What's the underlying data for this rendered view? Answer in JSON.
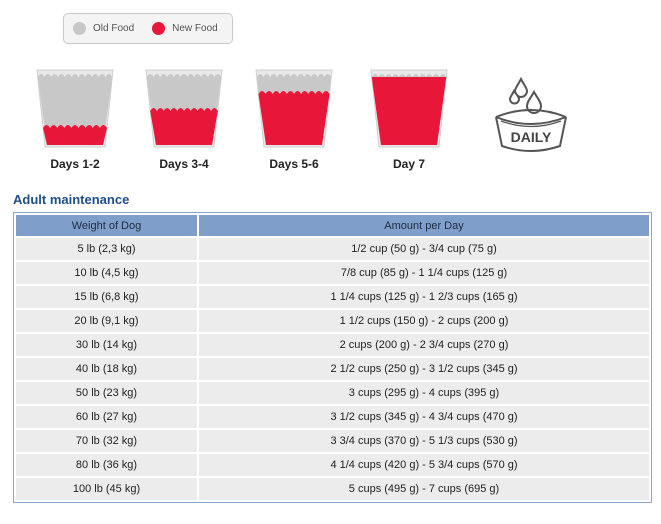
{
  "legend": {
    "old_label": "Old Food",
    "new_label": "New Food",
    "old_color": "#c8c8c8",
    "new_color": "#e8173a"
  },
  "cups": [
    {
      "label": "Days 1-2",
      "new_fraction": 0.25
    },
    {
      "label": "Days 3-4",
      "new_fraction": 0.5
    },
    {
      "label": "Days 5-6",
      "new_fraction": 0.75
    },
    {
      "label": "Day 7",
      "new_fraction": 1.0
    }
  ],
  "daily_icon": {
    "icon": "daily-bowl-icon",
    "text": "DAILY"
  },
  "section_title": "Adult maintenance",
  "table": {
    "headers": [
      "Weight of Dog",
      "Amount per Day"
    ],
    "rows": [
      [
        "5 lb (2,3 kg)",
        "1/2 cup (50 g) - 3/4 cup (75 g)"
      ],
      [
        "10 lb (4,5 kg)",
        "7/8 cup (85 g) - 1 1/4 cups (125 g)"
      ],
      [
        "15 lb (6,8 kg)",
        "1 1/4 cups (125 g) - 1 2/3 cups (165 g)"
      ],
      [
        "20 lb (9,1 kg)",
        "1 1/2 cups (150 g) - 2 cups (200 g)"
      ],
      [
        "30 lb (14 kg)",
        "2 cups (200 g) - 2 3/4 cups (270 g)"
      ],
      [
        "40 lb (18 kg)",
        "2 1/2 cups (250 g) - 3 1/2 cups (345 g)"
      ],
      [
        "50 lb (23 kg)",
        "3 cups (295 g) - 4 cups (395 g)"
      ],
      [
        "60 lb (27 kg)",
        "3 1/2 cups (345 g) - 4 3/4 cups (470 g)"
      ],
      [
        "70 lb (32 kg)",
        "3 3/4 cups (370 g) - 5 1/3 cups (530 g)"
      ],
      [
        "80 lb (36 kg)",
        "4 1/4 cups (420 g) - 5 3/4 cups (570 g)"
      ],
      [
        "100 lb (45 kg)",
        "5 cups (495 g) - 7 cups (695 g)"
      ]
    ]
  }
}
